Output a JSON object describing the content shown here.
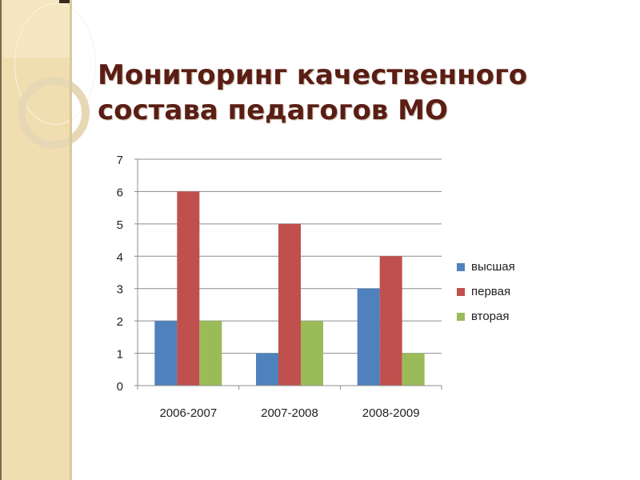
{
  "slide": {
    "title_line1": "Мониторинг качественного",
    "title_line2": "состава педагогов МО",
    "title_color": "#5a1e14"
  },
  "legend": {
    "items": [
      {
        "label": "высшая",
        "color": "#4f81bd"
      },
      {
        "label": "первая",
        "color": "#c0504d"
      },
      {
        "label": "вторая",
        "color": "#9bbb59"
      }
    ]
  },
  "chart_data": {
    "type": "bar",
    "title": "Мониторинг качественного состава педагогов МО",
    "xlabel": "",
    "ylabel": "",
    "categories": [
      "2006-2007",
      "2007-2008",
      "2008-2009"
    ],
    "series": [
      {
        "name": "высшая",
        "values": [
          2,
          1,
          3
        ],
        "color": "#4f81bd"
      },
      {
        "name": "первая",
        "values": [
          6,
          5,
          4
        ],
        "color": "#c0504d"
      },
      {
        "name": "вторая",
        "values": [
          2,
          2,
          1
        ],
        "color": "#9bbb59"
      }
    ],
    "ylim": [
      0,
      7
    ],
    "yticks": [
      0,
      1,
      2,
      3,
      4,
      5,
      6,
      7
    ],
    "grid": true,
    "legend_position": "right"
  }
}
